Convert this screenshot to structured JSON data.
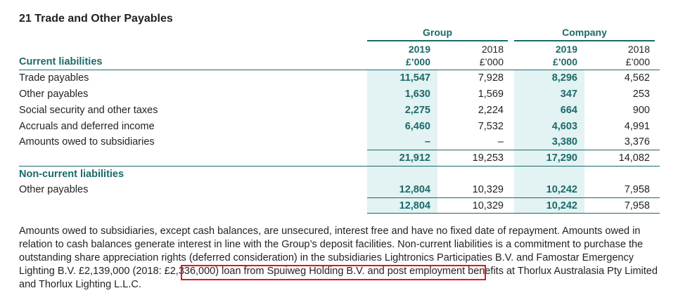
{
  "title": "21 Trade and Other Payables",
  "headers": {
    "group": "Group",
    "company": "Company",
    "years": [
      "2019",
      "2018",
      "2019",
      "2018"
    ],
    "units": [
      "£’000",
      "£’000",
      "£’000",
      "£’000"
    ]
  },
  "current_section": "Current liabilities",
  "current_rows": [
    {
      "label": "Trade payables",
      "values": [
        "11,547",
        "7,928",
        "8,296",
        "4,562"
      ]
    },
    {
      "label": "Other payables",
      "values": [
        "1,630",
        "1,569",
        "347",
        "253"
      ]
    },
    {
      "label": "Social security and other taxes",
      "values": [
        "2,275",
        "2,224",
        "664",
        "900"
      ]
    },
    {
      "label": "Accruals and deferred income",
      "values": [
        "6,460",
        "7,532",
        "4,603",
        "4,991"
      ]
    },
    {
      "label": "Amounts owed to subsidiaries",
      "values": [
        "–",
        "–",
        "3,380",
        "3,376"
      ]
    }
  ],
  "current_total": [
    "21,912",
    "19,253",
    "17,290",
    "14,082"
  ],
  "noncurrent_section": "Non-current liabilities",
  "noncurrent_rows": [
    {
      "label": "Other payables",
      "values": [
        "12,804",
        "10,329",
        "10,242",
        "7,958"
      ]
    }
  ],
  "noncurrent_total": [
    "12,804",
    "10,329",
    "10,242",
    "7,958"
  ],
  "note": {
    "part1": "Amounts owed to subsidiaries, except cash balances, are unsecured, interest free and have no fixed date of repayment. Amounts owed in relation to cash balances generate interest in line with the Group’s deposit facilities. Non-current liabilities is a commitment to purchase the outstanding share appreciation rights (deferred consideration) in the subsidiaries Lightronics Participaties B.V. and Famostar Emergency Lighting B.V. ",
    "highlight": "£2,139,000 (2018: £2,336,000) loan from Spuiweg Holding B.V.",
    "part2": " and post employment benefits at Thorlux Australasia Pty Limited and Thorlux Lighting L.L.C."
  }
}
